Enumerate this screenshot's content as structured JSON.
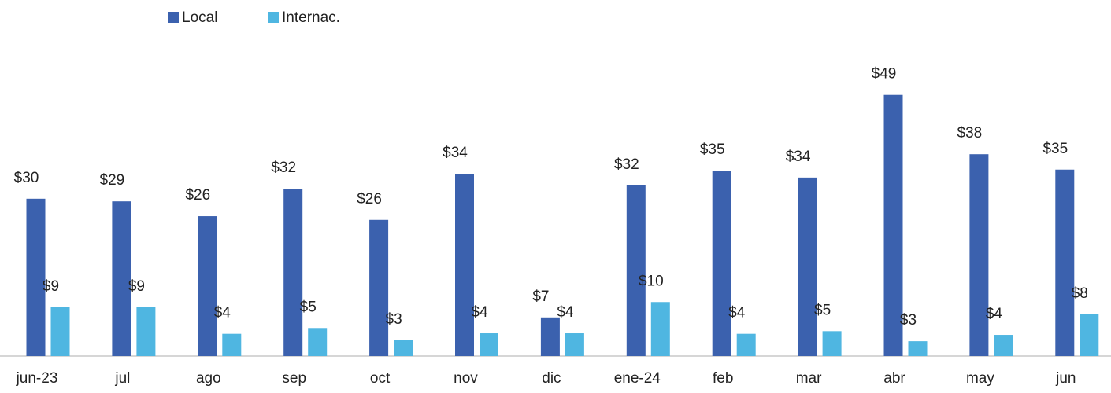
{
  "chart_data": {
    "type": "bar",
    "categories": [
      "jun-23",
      "jul",
      "ago",
      "sep",
      "oct",
      "nov",
      "dic",
      "ene-24",
      "feb",
      "mar",
      "abr",
      "may",
      "jun"
    ],
    "series": [
      {
        "name": "Local",
        "color": "#3b61ae",
        "values": [
          29.7,
          29.2,
          26.4,
          31.6,
          25.7,
          34.4,
          7.3,
          32.2,
          35.0,
          33.7,
          49.3,
          38.1,
          35.2
        ],
        "value_labels": [
          "$30",
          "$29",
          "$26",
          "$32",
          "$26",
          "$34",
          "$7",
          "$32",
          "$35",
          "$34",
          "$49",
          "$38",
          "$35"
        ]
      },
      {
        "name": "Internac.",
        "color": "#4fb6e1",
        "values": [
          9.2,
          9.2,
          4.2,
          5.3,
          3.0,
          4.3,
          4.3,
          10.2,
          4.2,
          4.7,
          2.8,
          4.0,
          7.9
        ],
        "value_labels": [
          "$9",
          "$9",
          "$4",
          "$5",
          "$3",
          "$4",
          "$4",
          "$10",
          "$4",
          "$5",
          "$3",
          "$4",
          "$8"
        ]
      }
    ],
    "ylim": [
      0,
      50
    ],
    "legend": "top-left"
  }
}
